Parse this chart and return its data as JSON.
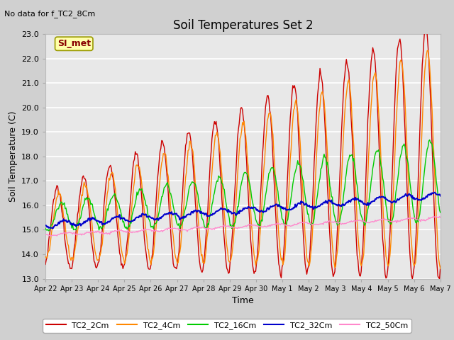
{
  "title": "Soil Temperatures Set 2",
  "subtitle": "No data for f_TC2_8Cm",
  "xlabel": "Time",
  "ylabel": "Soil Temperature (C)",
  "ylim": [
    13.0,
    23.0
  ],
  "yticks": [
    13.0,
    14.0,
    15.0,
    16.0,
    17.0,
    18.0,
    19.0,
    20.0,
    21.0,
    22.0,
    23.0
  ],
  "fig_bg": "#d0d0d0",
  "plot_bg": "#e8e8e8",
  "grid_color": "#ffffff",
  "legend_entries": [
    "TC2_2Cm",
    "TC2_4Cm",
    "TC2_16Cm",
    "TC2_32Cm",
    "TC2_50Cm"
  ],
  "line_colors": [
    "#cc0000",
    "#ff8800",
    "#00cc00",
    "#0000cc",
    "#ff88cc"
  ],
  "line_widths": [
    1.0,
    1.0,
    1.0,
    1.5,
    1.0
  ],
  "si_met_label": "SI_met",
  "x_tick_labels": [
    "Apr 22",
    "Apr 23",
    "Apr 24",
    "Apr 25",
    "Apr 26",
    "Apr 27",
    "Apr 28",
    "Apr 29",
    "Apr 30",
    "May 1",
    "May 2",
    "May 3",
    "May 4",
    "May 5",
    "May 6",
    "May 7"
  ],
  "num_points": 480
}
